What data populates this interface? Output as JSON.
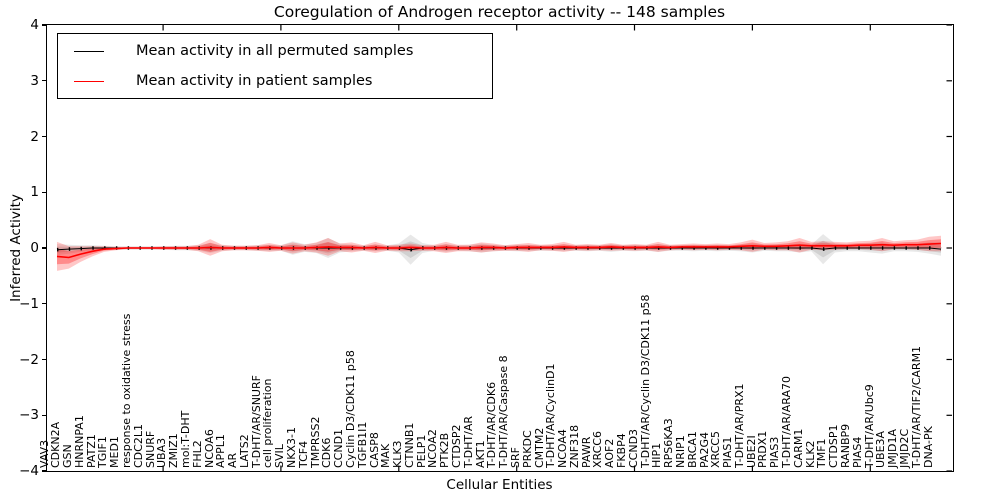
{
  "figure": {
    "title": "Coregulation of Androgen receptor activity -- 148 samples",
    "background": "#ffffff",
    "axis_color": "#000000"
  },
  "legend": {
    "entries": [
      {
        "label": "Mean activity in all permuted samples",
        "color": "#000000"
      },
      {
        "label": "Mean activity in patient samples",
        "color": "#ff0000"
      }
    ],
    "position": "upper-left"
  },
  "chart_data": {
    "type": "line",
    "title": "Coregulation of Androgen receptor activity -- 148 samples",
    "xlabel": "Cellular Entities",
    "ylabel": "Inferred Activity",
    "ylim": [
      -4,
      4
    ],
    "yticks": [
      4,
      3,
      2,
      1,
      0,
      -1,
      -2,
      -3,
      -4
    ],
    "x_major_ticks": [
      10,
      20,
      30,
      40,
      50,
      60,
      70
    ],
    "grid": false,
    "legend_position": "upper-left",
    "categories": [
      "VAV3",
      "CDKN2A",
      "GSN",
      "HNRNPA1",
      "PATZ1",
      "TGIF1",
      "MED1",
      "response to oxidative stress",
      "CDC2L1",
      "SNURF",
      "UBA3",
      "ZMIZ1",
      "mol:T-DHT",
      "FHL2",
      "NCOA6",
      "APPL1",
      "AR",
      "LATS2",
      "T-DHT/AR/SNURF",
      "cell proliferation",
      "SVIL",
      "NKX3-1",
      "TCF4",
      "TMPRSS2",
      "CDK6",
      "CCND1",
      "Cyclin D3/CDK11 p58",
      "TGFB1I1",
      "CASP8",
      "MAK",
      "KLK3",
      "CTNNB1",
      "PELP1",
      "NCOA2",
      "PTK2B",
      "CTDSP2",
      "T-DHT/AR",
      "AKT1",
      "T-DHT/AR/CDK6",
      "T-DHT/AR/Caspase 8",
      "SRF",
      "PRKDC",
      "CMTM2",
      "T-DHT/AR/CyclinD1",
      "NCOA4",
      "ZNF318",
      "PAWR",
      "XRCC6",
      "AOF2",
      "FKBP4",
      "CCND3",
      "T-DHT/AR/Cyclin D3/CDK11 p58",
      "HIP1",
      "RPS6KA3",
      "NRIP1",
      "BRCA1",
      "PA2G4",
      "XRCC5",
      "PIAS1",
      "T-DHT/AR/PRX1",
      "UBE2I",
      "PRDX1",
      "PIAS3",
      "T-DHT/AR/ARA70",
      "CARM1",
      "KLK2",
      "TMF1",
      "CTDSP1",
      "RANBP9",
      "PIAS4",
      "T-DHT/AR/Ubc9",
      "UBE3A",
      "JMJD1A",
      "JMJD2C",
      "T-DHT/AR/TIF2/CARM1",
      "DNA-PK"
    ],
    "series": [
      {
        "name": "Mean activity in all permuted samples",
        "color": "#000000",
        "band_color": "#808080",
        "values": [
          -0.03,
          -0.02,
          -0.01,
          0,
          0,
          0,
          0,
          0,
          0,
          0,
          0,
          0,
          0,
          0,
          0,
          0,
          0,
          0,
          0,
          0,
          0,
          0,
          0,
          0,
          0,
          0,
          0,
          0,
          0,
          0,
          -0.03,
          0,
          0,
          0,
          0,
          0,
          0,
          0,
          0,
          0,
          0,
          0,
          0,
          0,
          0,
          0,
          0,
          0,
          0,
          0,
          0,
          0,
          0,
          0,
          0,
          0,
          0,
          0,
          0,
          0,
          0,
          0,
          0,
          0,
          0,
          -0.02,
          0,
          0,
          0,
          0,
          0,
          0,
          0,
          0,
          0,
          -0.02
        ],
        "band": [
          0.1,
          0.08,
          0.06,
          0.05,
          0.04,
          0.03,
          0.03,
          0.03,
          0.03,
          0.03,
          0.04,
          0.04,
          0.05,
          0.09,
          0.05,
          0.04,
          0.04,
          0.05,
          0.06,
          0.05,
          0.12,
          0.07,
          0.09,
          0.18,
          0.08,
          0.06,
          0.05,
          0.06,
          0.05,
          0.08,
          0.27,
          0.09,
          0.05,
          0.07,
          0.05,
          0.06,
          0.08,
          0.06,
          0.05,
          0.06,
          0.06,
          0.05,
          0.05,
          0.06,
          0.05,
          0.06,
          0.05,
          0.07,
          0.05,
          0.06,
          0.05,
          0.07,
          0.05,
          0.05,
          0.06,
          0.05,
          0.06,
          0.05,
          0.06,
          0.08,
          0.05,
          0.06,
          0.06,
          0.08,
          0.06,
          0.27,
          0.08,
          0.06,
          0.06,
          0.08,
          0.1,
          0.06,
          0.06,
          0.07,
          0.1,
          0.12
        ]
      },
      {
        "name": "Mean activity in patient samples",
        "color": "#ff0000",
        "band_color": "#ff0000",
        "values": [
          -0.15,
          -0.17,
          -0.11,
          -0.06,
          -0.02,
          -0.01,
          0,
          0,
          0,
          0,
          0,
          0,
          0,
          0.01,
          0,
          0,
          0,
          0,
          0.01,
          0,
          0,
          0,
          0.01,
          0.02,
          0.01,
          0.01,
          0,
          0.01,
          0,
          0,
          0.01,
          0,
          0,
          0.01,
          0,
          0,
          0.01,
          0.01,
          0,
          0.01,
          0.01,
          0.01,
          0.01,
          0.02,
          0.01,
          0.01,
          0.01,
          0.02,
          0.01,
          0.01,
          0.01,
          0.02,
          0.01,
          0.02,
          0.02,
          0.02,
          0.02,
          0.02,
          0.03,
          0.04,
          0.03,
          0.03,
          0.04,
          0.05,
          0.04,
          0.04,
          0.04,
          0.04,
          0.05,
          0.05,
          0.06,
          0.05,
          0.06,
          0.06,
          0.07,
          0.08
        ],
        "band": [
          0.26,
          0.2,
          0.14,
          0.09,
          0.05,
          0.03,
          0.02,
          0.02,
          0.02,
          0.03,
          0.03,
          0.03,
          0.06,
          0.15,
          0.06,
          0.04,
          0.04,
          0.05,
          0.08,
          0.05,
          0.1,
          0.06,
          0.09,
          0.16,
          0.07,
          0.09,
          0.05,
          0.1,
          0.05,
          0.06,
          0.07,
          0.05,
          0.06,
          0.1,
          0.06,
          0.06,
          0.09,
          0.07,
          0.05,
          0.06,
          0.08,
          0.05,
          0.06,
          0.09,
          0.05,
          0.06,
          0.05,
          0.07,
          0.05,
          0.06,
          0.05,
          0.09,
          0.05,
          0.05,
          0.06,
          0.05,
          0.06,
          0.05,
          0.07,
          0.11,
          0.06,
          0.07,
          0.08,
          0.13,
          0.07,
          0.08,
          0.07,
          0.06,
          0.07,
          0.08,
          0.12,
          0.07,
          0.08,
          0.09,
          0.13,
          0.14
        ]
      }
    ]
  }
}
